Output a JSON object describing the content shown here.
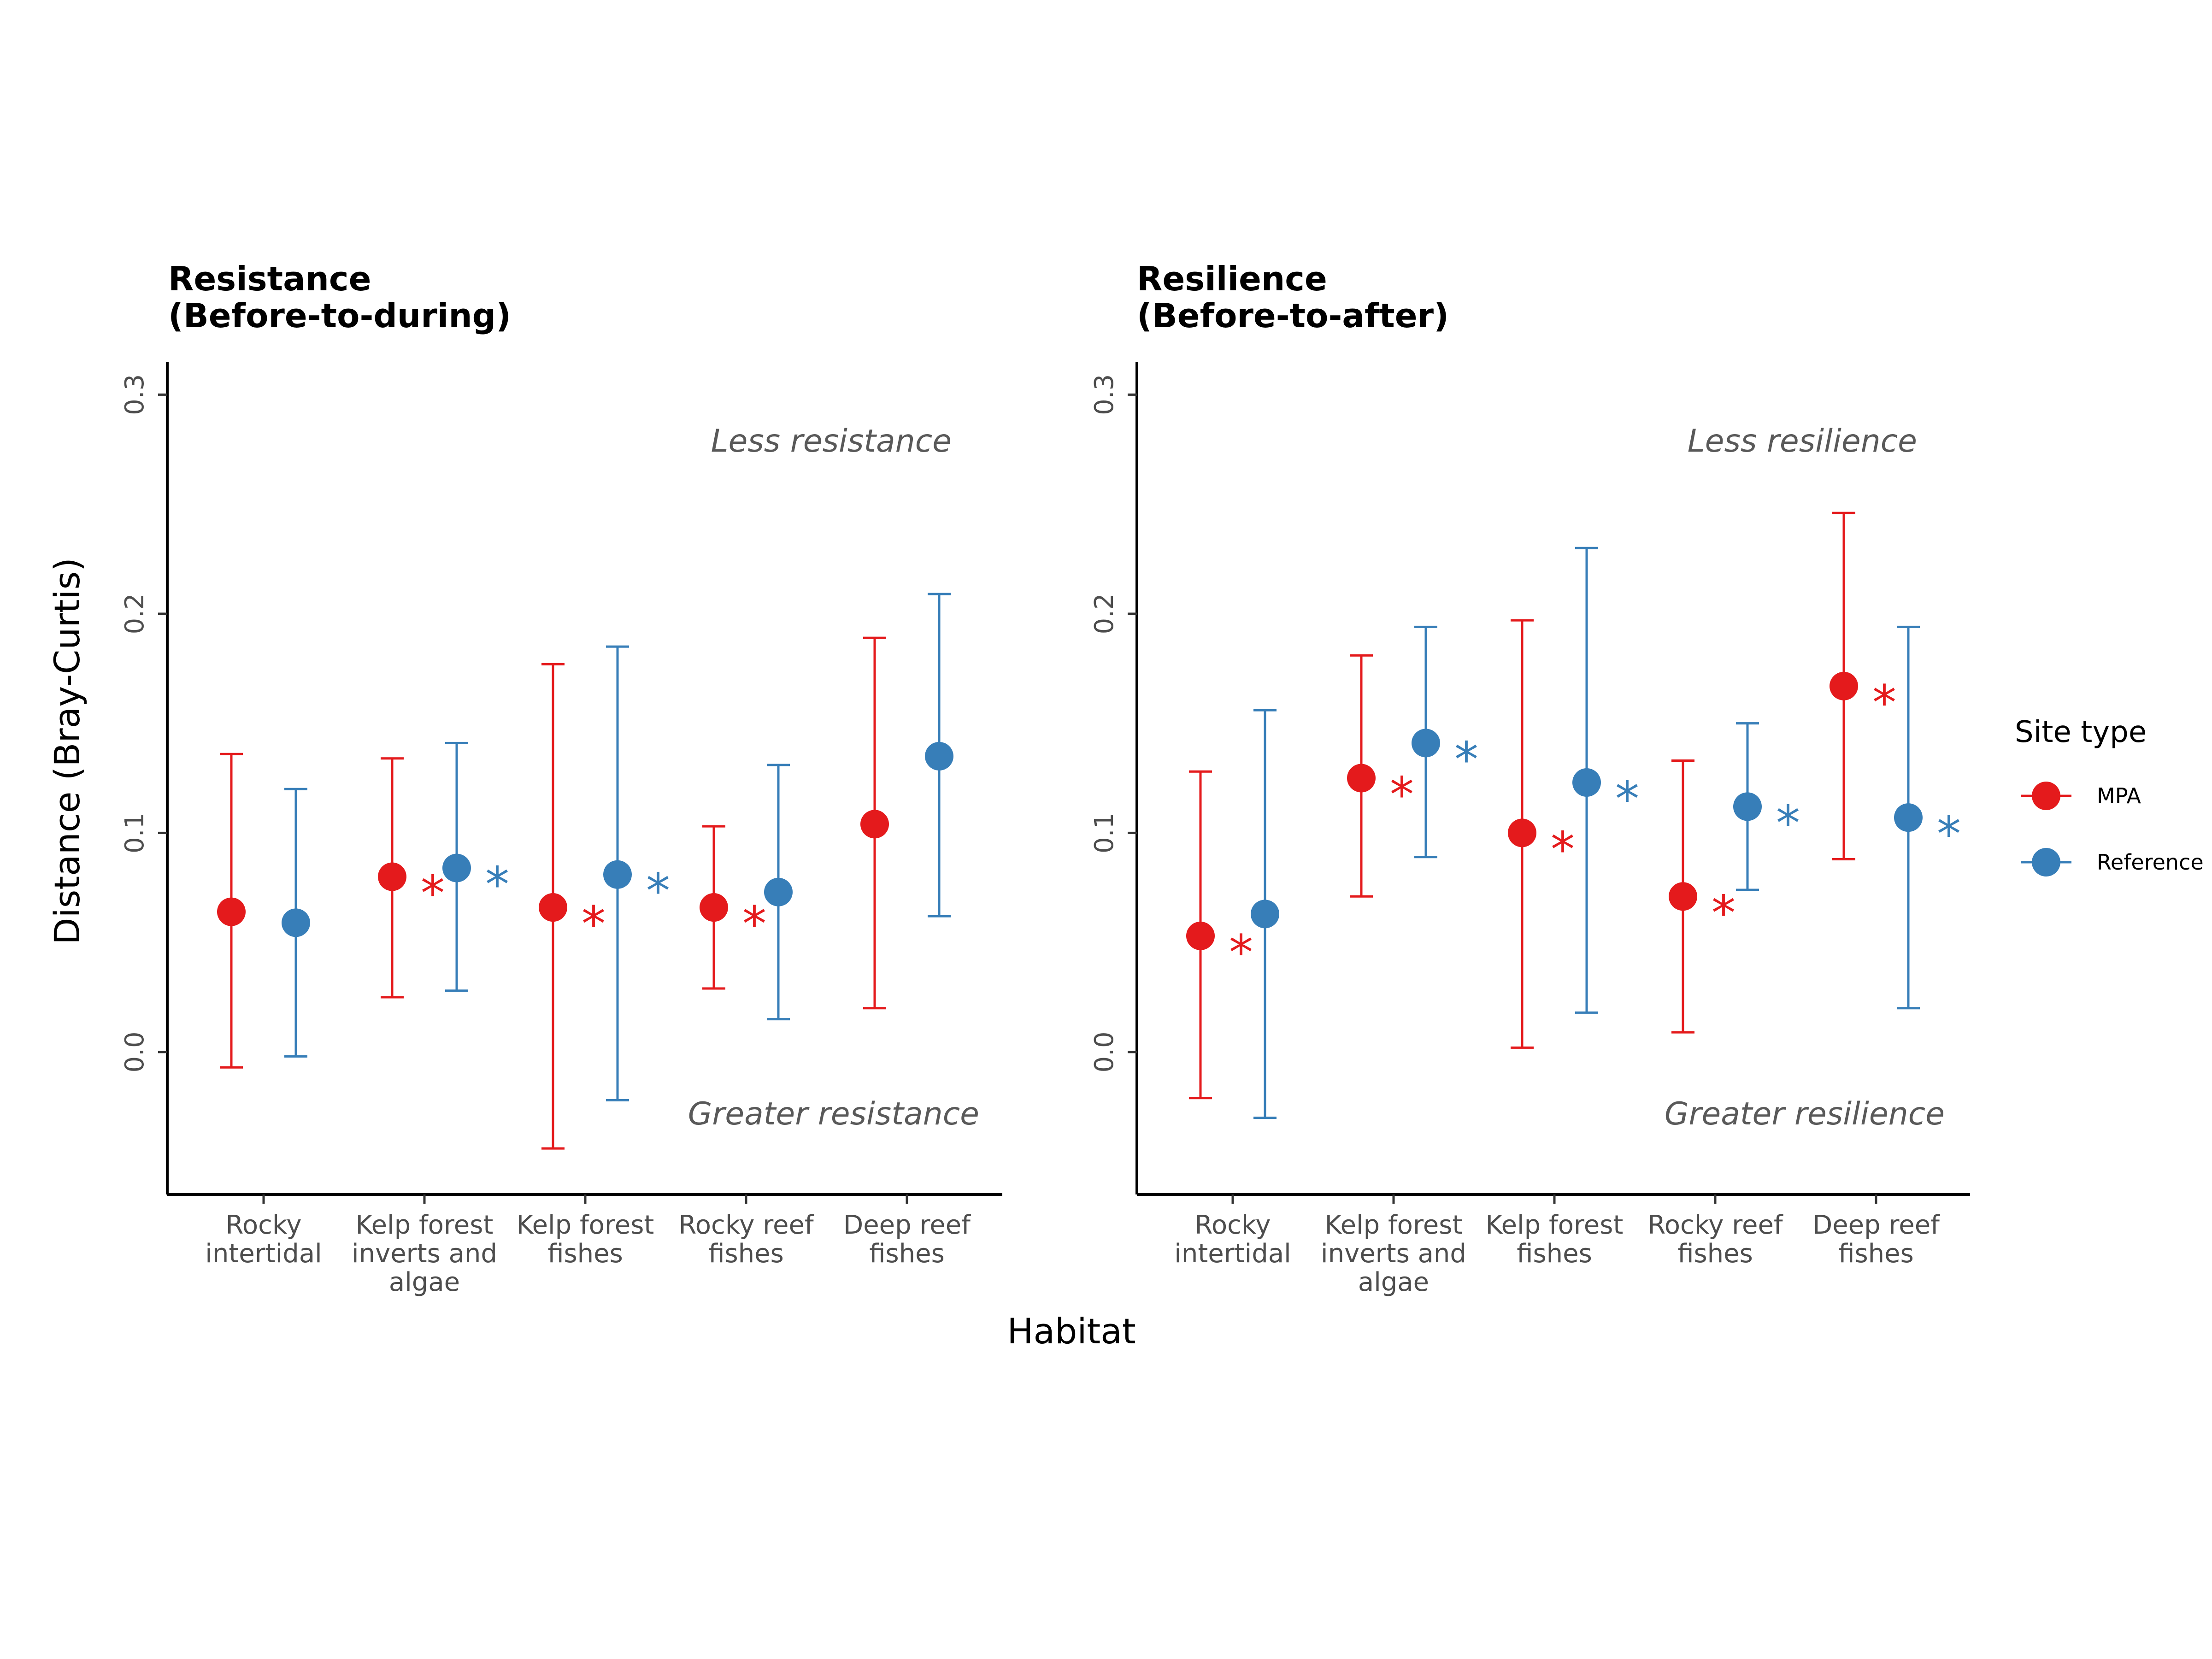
{
  "chart_data": [
    {
      "type": "scatter",
      "title": "Resistance",
      "subtitle": "(Before-to-during)",
      "categories": [
        "Rocky intertidal",
        "Kelp forest inverts and algae",
        "Kelp forest fishes",
        "Rocky reef fishes",
        "Deep reef fishes"
      ],
      "category_lines": [
        [
          "Rocky",
          "intertidal"
        ],
        [
          "Kelp forest",
          "inverts and",
          "algae"
        ],
        [
          "Kelp forest",
          "fishes"
        ],
        [
          "Rocky reef",
          "fishes"
        ],
        [
          "Deep reef",
          "fishes"
        ]
      ],
      "ylim": [
        -0.065,
        0.315
      ],
      "yticks": [
        "0.0",
        "0.1",
        "0.2",
        "0.3"
      ],
      "annotation_top": "Less resistance",
      "annotation_bottom": "Greater resistance",
      "series": [
        {
          "name": "MPA",
          "color": "#e41a1c",
          "values": [
            0.064,
            0.08,
            0.066,
            0.066,
            0.104
          ],
          "lower": [
            -0.007,
            0.025,
            -0.044,
            0.029,
            0.02
          ],
          "upper": [
            0.136,
            0.134,
            0.177,
            0.103,
            0.189
          ],
          "significant": [
            false,
            true,
            true,
            true,
            false
          ]
        },
        {
          "name": "Reference",
          "color": "#377eb8",
          "values": [
            0.059,
            0.084,
            0.081,
            0.073,
            0.135
          ],
          "lower": [
            -0.002,
            0.028,
            -0.022,
            0.015,
            0.062
          ],
          "upper": [
            0.12,
            0.141,
            0.185,
            0.131,
            0.209
          ],
          "significant": [
            false,
            true,
            true,
            false,
            false
          ]
        }
      ]
    },
    {
      "type": "scatter",
      "title": "Resilience",
      "subtitle": "(Before-to-after)",
      "categories": [
        "Rocky intertidal",
        "Kelp forest inverts and algae",
        "Kelp forest fishes",
        "Rocky reef fishes",
        "Deep reef fishes"
      ],
      "category_lines": [
        [
          "Rocky",
          "intertidal"
        ],
        [
          "Kelp forest",
          "inverts and",
          "algae"
        ],
        [
          "Kelp forest",
          "fishes"
        ],
        [
          "Rocky reef",
          "fishes"
        ],
        [
          "Deep reef",
          "fishes"
        ]
      ],
      "ylim": [
        -0.065,
        0.315
      ],
      "yticks": [
        "0.0",
        "0.1",
        "0.2",
        "0.3"
      ],
      "annotation_top": "Less resilience",
      "annotation_bottom": "Greater resilience",
      "series": [
        {
          "name": "MPA",
          "color": "#e41a1c",
          "values": [
            0.053,
            0.125,
            0.1,
            0.071,
            0.167
          ],
          "lower": [
            -0.021,
            0.071,
            0.002,
            0.009,
            0.088
          ],
          "upper": [
            0.128,
            0.181,
            0.197,
            0.133,
            0.246
          ],
          "significant": [
            true,
            true,
            true,
            true,
            true
          ]
        },
        {
          "name": "Reference",
          "color": "#377eb8",
          "values": [
            0.063,
            0.141,
            0.123,
            0.112,
            0.107
          ],
          "lower": [
            -0.03,
            0.089,
            0.018,
            0.074,
            0.02
          ],
          "upper": [
            0.156,
            0.194,
            0.23,
            0.15,
            0.194
          ],
          "significant": [
            false,
            true,
            true,
            true,
            true
          ]
        }
      ]
    }
  ],
  "axes": {
    "ylabel": "Distance (Bray-Curtis)",
    "xlabel": "Habitat",
    "significance_marker": "*"
  },
  "legend": {
    "title": "Site type",
    "placement": "right",
    "items": [
      {
        "label": "MPA",
        "color": "#e41a1c"
      },
      {
        "label": "Reference",
        "color": "#377eb8"
      }
    ]
  }
}
